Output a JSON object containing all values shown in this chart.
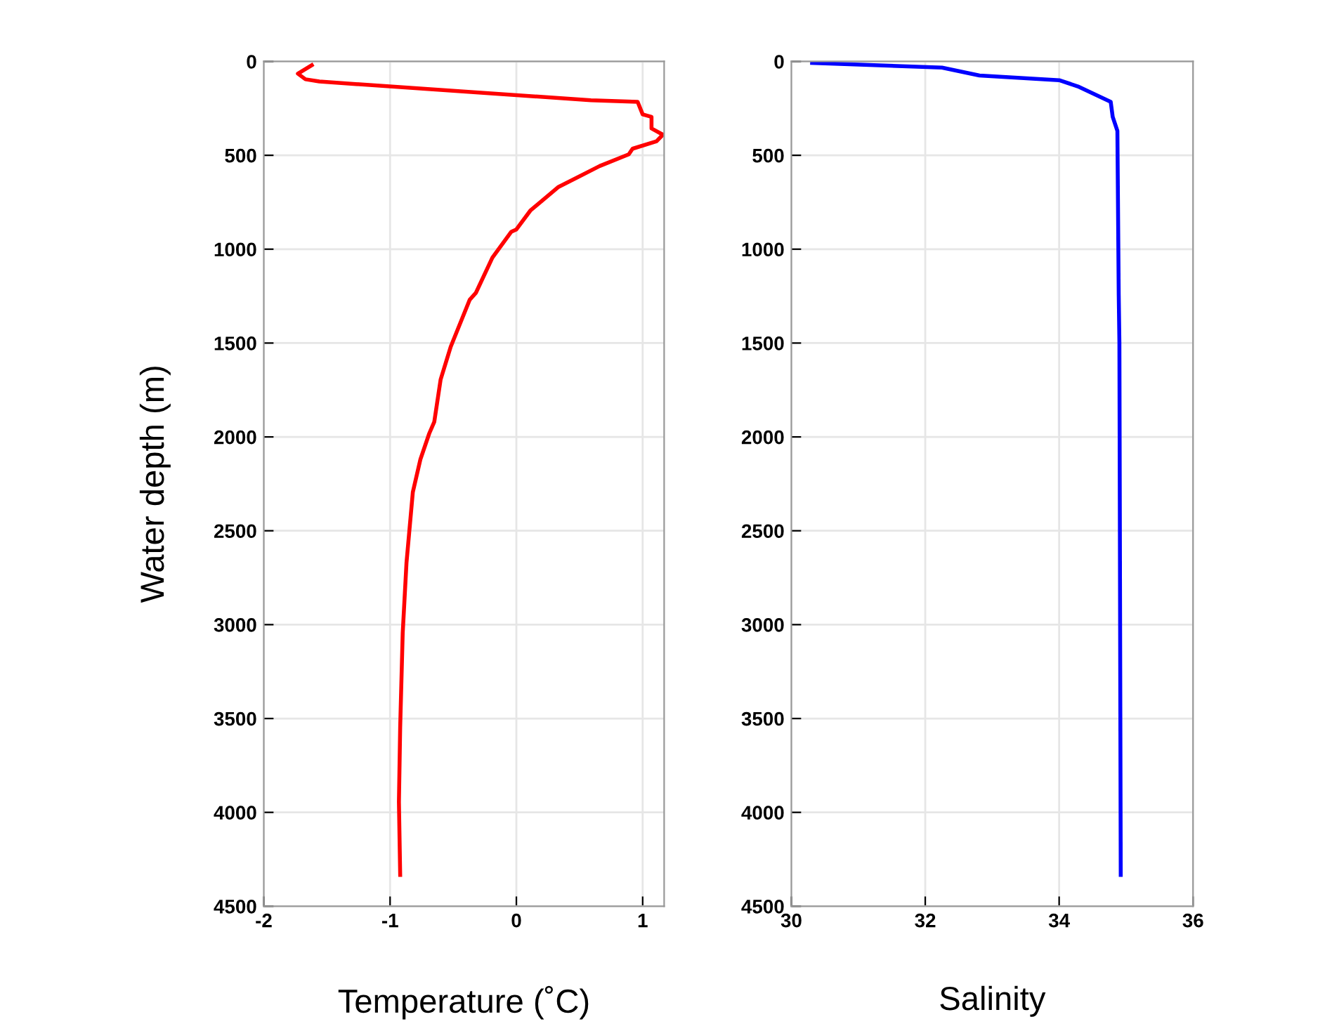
{
  "chart_data": [
    {
      "type": "line",
      "xlabel": "Temperature (˚C)",
      "ylabel": "Water depth (m)",
      "xlim": [
        -2,
        1.17
      ],
      "xticks": [
        -2,
        -1,
        0,
        1
      ],
      "ylim": [
        4500,
        0
      ],
      "yticks": [
        0,
        500,
        1000,
        1500,
        2000,
        2500,
        3000,
        3500,
        4000,
        4500
      ],
      "grid": true,
      "series": [
        {
          "color": "#ff0000",
          "x": [
            -1.62,
            -1.73,
            -1.67,
            -1.56,
            0.59,
            0.96,
            1.0,
            1.07,
            1.07,
            1.16,
            1.11,
            0.92,
            0.89,
            0.66,
            0.33,
            0.11,
            0.0,
            -0.04,
            -0.19,
            -0.32,
            -0.37,
            -0.52,
            -0.6,
            -0.65,
            -0.69,
            -0.76,
            -0.82,
            -0.87,
            -0.9,
            -0.92,
            -0.93,
            -0.92
          ],
          "values": [
            20,
            65,
            95,
            107,
            207,
            215,
            282,
            295,
            357,
            390,
            425,
            465,
            495,
            557,
            670,
            795,
            895,
            907,
            1045,
            1232,
            1270,
            1520,
            1695,
            1920,
            1982,
            2120,
            2295,
            2670,
            3045,
            3545,
            3945,
            4333
          ]
        }
      ]
    },
    {
      "type": "line",
      "xlabel": "Salinity",
      "xlim": [
        30,
        36
      ],
      "xticks": [
        30,
        32,
        34,
        36
      ],
      "ylim": [
        4500,
        0
      ],
      "yticks": [
        0,
        500,
        1000,
        1500,
        2000,
        2500,
        3000,
        3500,
        4000,
        4500
      ],
      "grid": true,
      "series": [
        {
          "color": "#0000ff",
          "x": [
            30.31,
            32.25,
            32.81,
            34.0,
            34.28,
            34.77,
            34.8,
            34.87,
            34.89,
            34.9,
            34.92
          ],
          "values": [
            8,
            33,
            75,
            100,
            133,
            215,
            295,
            370,
            1245,
            1500,
            4333
          ]
        }
      ]
    }
  ]
}
